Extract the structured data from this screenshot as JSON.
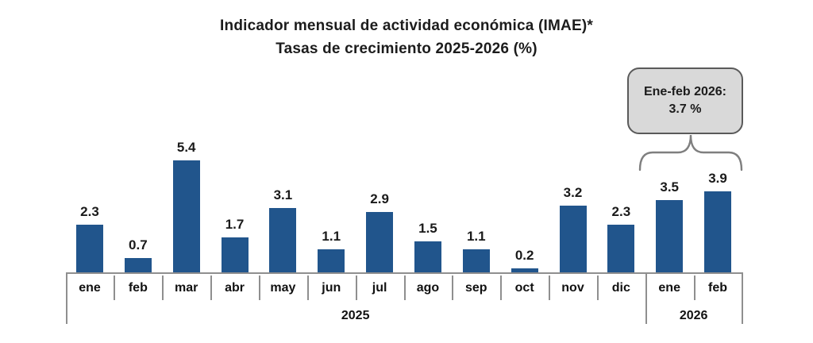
{
  "title": {
    "line1": "Indicador mensual de actividad económica (IMAE)*",
    "line2": "Tasas de crecimiento 2025-2026 (%)"
  },
  "chart_data": {
    "type": "bar",
    "categories": [
      "ene",
      "feb",
      "mar",
      "abr",
      "may",
      "jun",
      "jul",
      "ago",
      "sep",
      "oct",
      "nov",
      "dic",
      "ene",
      "feb"
    ],
    "values": [
      2.3,
      0.7,
      5.4,
      1.7,
      3.1,
      1.1,
      2.9,
      1.5,
      1.1,
      0.2,
      3.2,
      2.3,
      3.5,
      3.9
    ],
    "groups": [
      {
        "label": "2025",
        "start": 0,
        "count": 12
      },
      {
        "label": "2026",
        "start": 12,
        "count": 2
      }
    ],
    "title": "Indicador mensual de actividad económica (IMAE)* Tasas de crecimiento 2025-2026 (%)",
    "xlabel": "",
    "ylabel": "",
    "ylim": [
      0,
      6
    ],
    "grid": false,
    "legend": "none",
    "value_labels_shown": true,
    "bar_color": "#21558C",
    "annotation": {
      "line1": "Ene-feb 2026:",
      "line2": "3.7 %",
      "applies_to": [
        "ene 2026",
        "feb 2026"
      ],
      "box_fill": "#d9d9d9",
      "box_border": "#5a5a5a"
    }
  },
  "colors": {
    "bar": "#21558C",
    "axis": "#8f8f8f",
    "text": "#1c1c1c",
    "background": "#ffffff"
  }
}
